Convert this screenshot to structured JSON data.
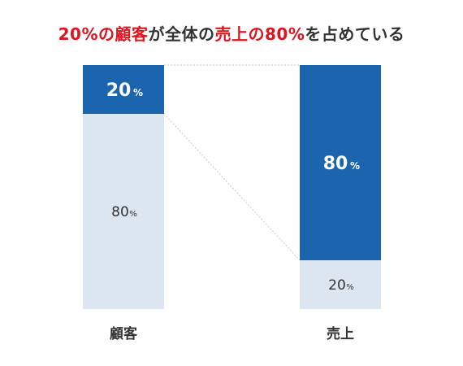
{
  "headline": {
    "part1": "20%の顧客",
    "part2": "が全体の",
    "part3": "売上の80%",
    "part4": "を占めている",
    "highlight_color": "#e0141e",
    "text_color": "#333333"
  },
  "chart_data": {
    "type": "bar",
    "stacked": true,
    "percent": true,
    "title": "20%の顧客が全体の売上の80%を占めている",
    "unit": "%",
    "categories": [
      "顧客",
      "売上"
    ],
    "segments": [
      [
        {
          "value": 20,
          "label": "20",
          "color": "#1a65ad",
          "text_color": "#ffffff",
          "emphasis": true
        },
        {
          "value": 80,
          "label": "80",
          "color": "#dce6f1",
          "text_color": "#333333",
          "emphasis": false
        }
      ],
      [
        {
          "value": 80,
          "label": "80",
          "color": "#1a65ad",
          "text_color": "#ffffff",
          "emphasis": true
        },
        {
          "value": 20,
          "label": "20",
          "color": "#dce6f1",
          "text_color": "#333333",
          "emphasis": false
        }
      ]
    ],
    "connector_lines": true,
    "connector_color": "#cccccc",
    "grid": false,
    "legend": "none"
  }
}
